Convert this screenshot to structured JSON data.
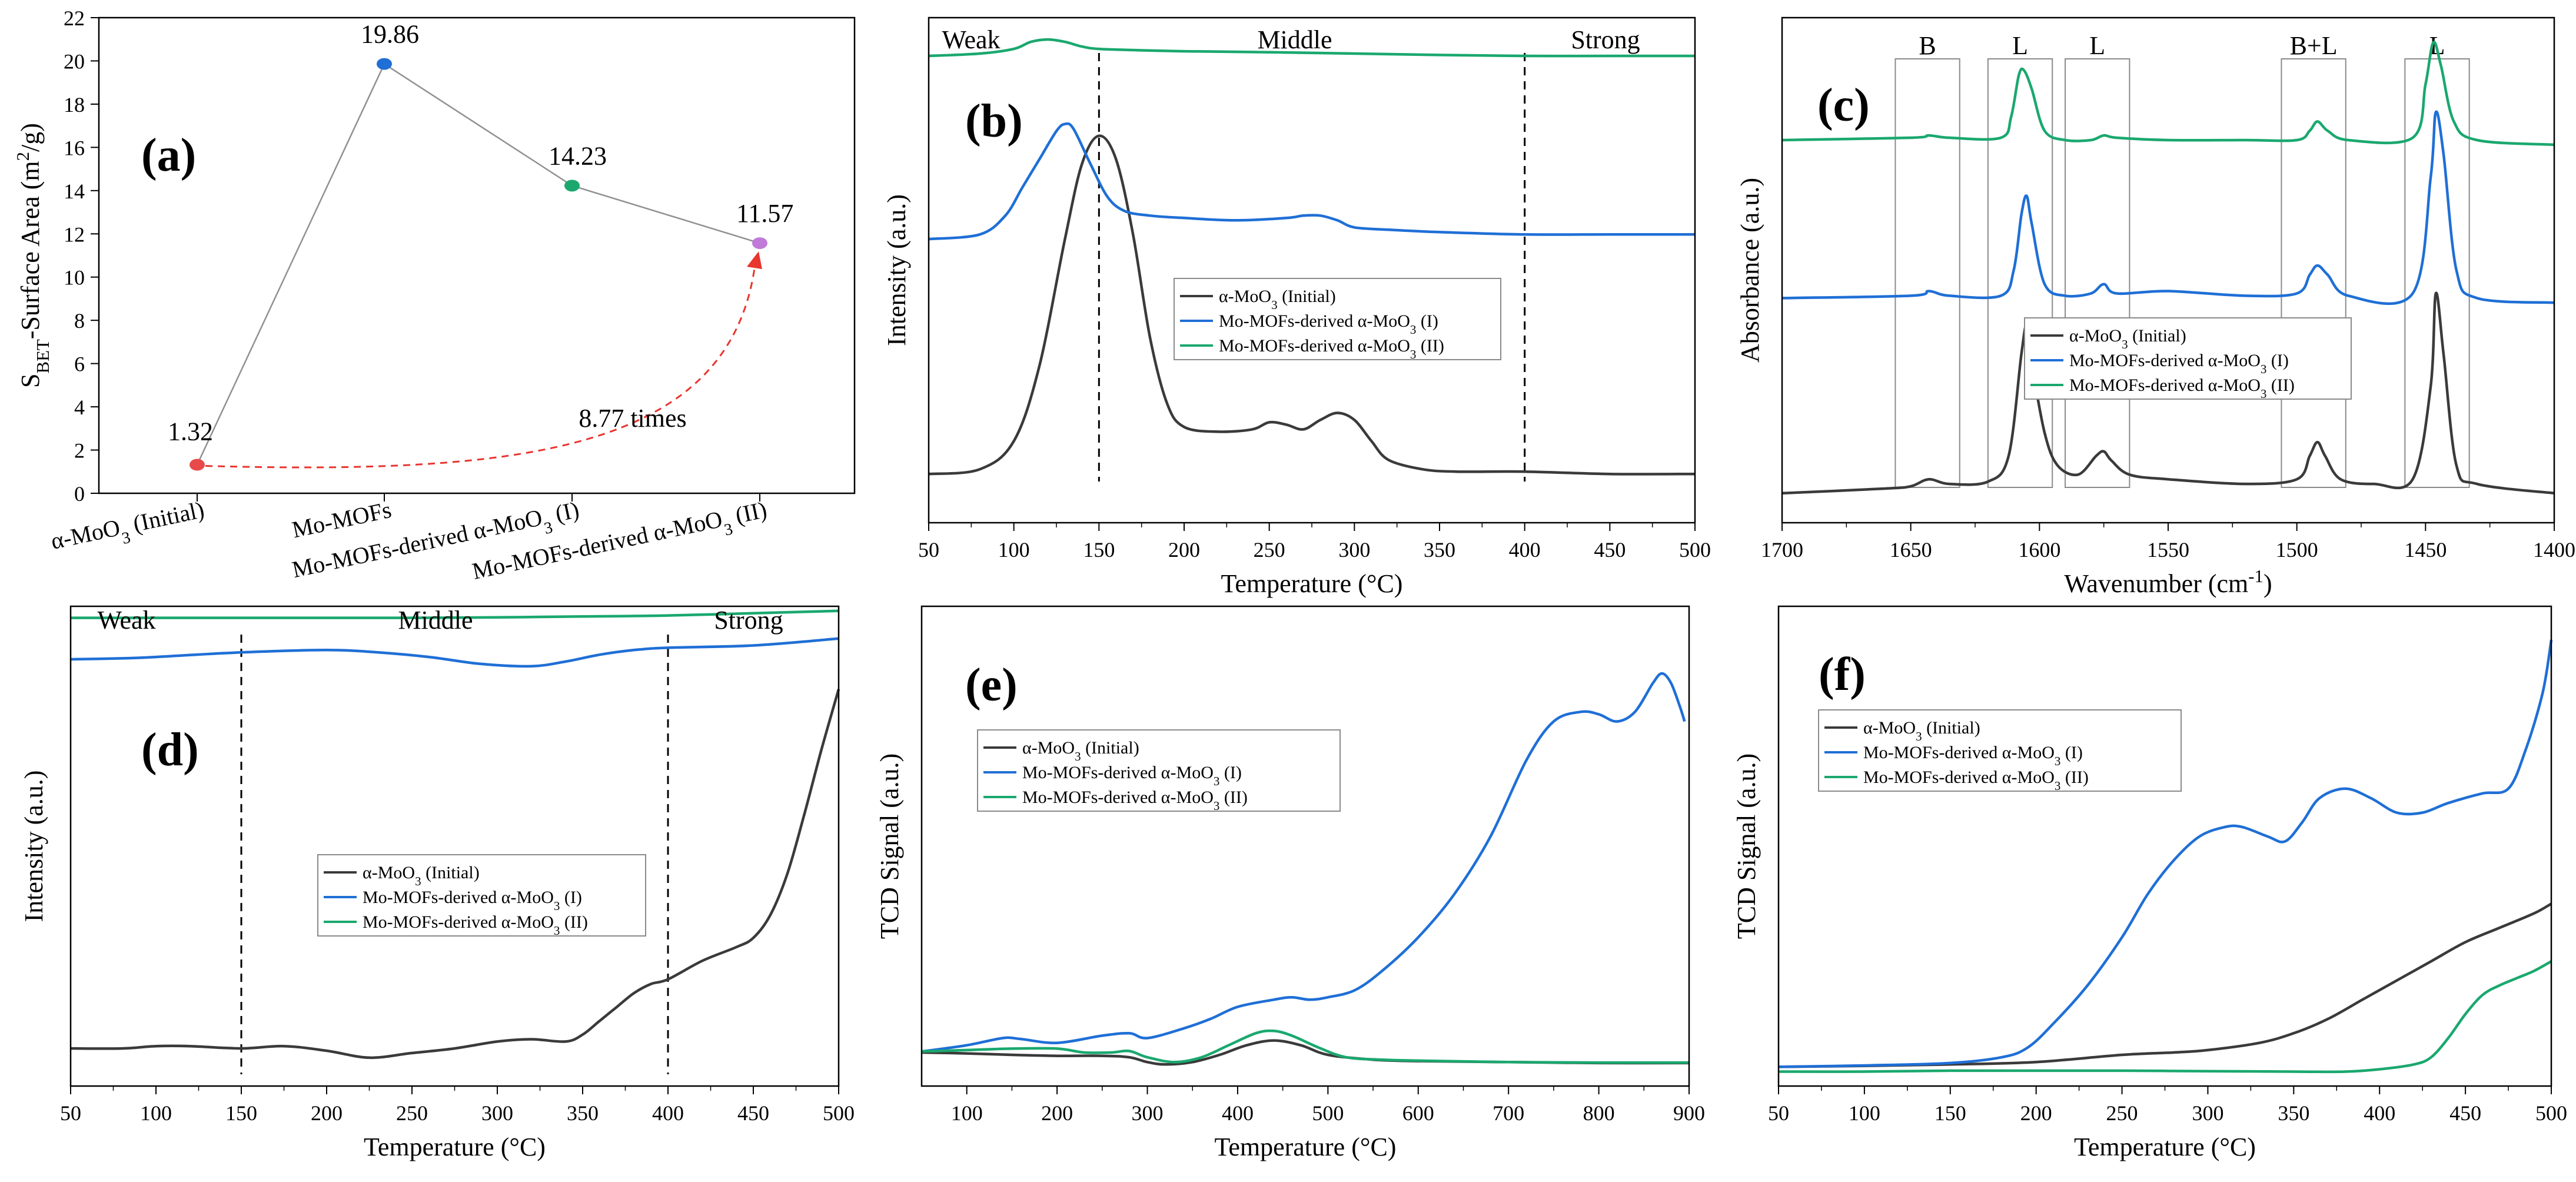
{
  "figure": "Six-panel figure: surface area and acid/reduction characterization of α-MoO3 samples",
  "colors": {
    "initial": "#3a3a3a",
    "mof1": "#1f6fd6",
    "mof2": "#1aa86e",
    "arrow": "#e8352e",
    "grey": "#909090"
  },
  "legend": [
    "α-MoO₃ (Initial)",
    "Mo-MOFs-derived α-MoO₃ (I)",
    "Mo-MOFs-derived α-MoO₃ (II)"
  ],
  "chart_data": [
    {
      "id": "a",
      "type": "scatter",
      "panel_label": "(a)",
      "ylabel": "S_BET-Surface Area (m²/g)",
      "ylim": [
        0,
        22
      ],
      "yticks": [
        "0",
        "2",
        "4",
        "6",
        "8",
        "10",
        "12",
        "14",
        "16",
        "18",
        "20",
        "22"
      ],
      "categories": [
        "α-MoO₃ (Initial)",
        "Mo-MOFs",
        "Mo-MOFs-derived α-MoO₃ (I)",
        "Mo-MOFs-derived α-MoO₃ (II)"
      ],
      "values": [
        1.32,
        19.86,
        14.23,
        11.57
      ],
      "point_labels": [
        "1.32",
        "19.86",
        "14.23",
        "11.57"
      ],
      "point_colors": [
        "#e84a4a",
        "#1f6fd6",
        "#1aa86e",
        "#c07ad8"
      ],
      "annotation": "8.77 times"
    },
    {
      "id": "b",
      "type": "line",
      "panel_label": "(b)",
      "xlabel": "Temperature (°C)",
      "ylabel": "Intensity (a.u.)",
      "xlim": [
        50,
        500
      ],
      "xticks": [
        "50",
        "100",
        "150",
        "200",
        "250",
        "300",
        "350",
        "400",
        "450",
        "500"
      ],
      "regions": [
        "Weak",
        "Middle",
        "Strong"
      ],
      "dividers": [
        150,
        400
      ],
      "series": [
        {
          "name": "α-MoO₃ (Initial)",
          "x": [
            50,
            80,
            100,
            115,
            130,
            140,
            150,
            160,
            170,
            180,
            190,
            200,
            220,
            240,
            250,
            260,
            270,
            280,
            290,
            300,
            310,
            320,
            340,
            360,
            400,
            450,
            500
          ],
          "y": [
            0.05,
            0.06,
            0.12,
            0.28,
            0.55,
            0.71,
            0.77,
            0.72,
            0.56,
            0.34,
            0.2,
            0.15,
            0.14,
            0.145,
            0.16,
            0.155,
            0.145,
            0.165,
            0.18,
            0.165,
            0.12,
            0.08,
            0.06,
            0.055,
            0.055,
            0.05,
            0.05
          ]
        },
        {
          "name": "Mo-MOFs-derived α-MoO₃ (I)",
          "x": [
            50,
            80,
            95,
            105,
            115,
            125,
            130,
            135,
            145,
            155,
            165,
            180,
            200,
            230,
            260,
            270,
            280,
            290,
            300,
            320,
            350,
            400,
            450,
            500
          ],
          "y": [
            0.55,
            0.56,
            0.6,
            0.66,
            0.72,
            0.78,
            0.795,
            0.785,
            0.71,
            0.64,
            0.61,
            0.6,
            0.595,
            0.59,
            0.595,
            0.6,
            0.6,
            0.59,
            0.575,
            0.57,
            0.565,
            0.56,
            0.56,
            0.56
          ]
        },
        {
          "name": "Mo-MOFs-derived α-MoO₃ (II)",
          "x": [
            50,
            80,
            100,
            110,
            120,
            130,
            140,
            150,
            175,
            200,
            250,
            300,
            350,
            400,
            450,
            500
          ],
          "y": [
            0.94,
            0.945,
            0.955,
            0.97,
            0.975,
            0.97,
            0.96,
            0.955,
            0.952,
            0.95,
            0.948,
            0.945,
            0.942,
            0.94,
            0.94,
            0.94
          ]
        }
      ]
    },
    {
      "id": "c",
      "type": "line",
      "panel_label": "(c)",
      "xlabel": "Wavenumber (cm⁻¹)",
      "ylabel": "Absorbance (a.u.)",
      "xlim": [
        1700,
        1400
      ],
      "xticks": [
        "1700",
        "1650",
        "1600",
        "1550",
        "1500",
        "1450",
        "1400"
      ],
      "bands": [
        "B",
        "L",
        "L",
        "B+L",
        "L"
      ],
      "series": [
        {
          "name": "α-MoO₃ (Initial)",
          "x": [
            1700,
            1660,
            1650,
            1643,
            1635,
            1620,
            1612,
            1607,
            1605,
            1603,
            1598,
            1593,
            1585,
            1578,
            1575,
            1572,
            1565,
            1550,
            1520,
            1500,
            1495,
            1492,
            1489,
            1483,
            1470,
            1455,
            1448,
            1446,
            1443,
            1438,
            1430,
            1400
          ],
          "y": [
            0.02,
            0.03,
            0.035,
            0.05,
            0.04,
            0.045,
            0.1,
            0.32,
            0.38,
            0.3,
            0.15,
            0.08,
            0.06,
            0.1,
            0.11,
            0.09,
            0.06,
            0.05,
            0.04,
            0.05,
            0.1,
            0.13,
            0.1,
            0.05,
            0.04,
            0.05,
            0.25,
            0.45,
            0.32,
            0.08,
            0.04,
            0.02
          ]
        },
        {
          "name": "Mo-MOFs-derived α-MoO₃ (I)",
          "x": [
            1700,
            1650,
            1643,
            1635,
            1615,
            1610,
            1607,
            1605,
            1603,
            1598,
            1590,
            1580,
            1575,
            1570,
            1550,
            1520,
            1500,
            1495,
            1492,
            1488,
            1480,
            1455,
            1448,
            1446,
            1443,
            1438,
            1430,
            1400
          ],
          "y": [
            0.44,
            0.445,
            0.455,
            0.445,
            0.445,
            0.5,
            0.62,
            0.66,
            0.6,
            0.47,
            0.445,
            0.45,
            0.47,
            0.45,
            0.455,
            0.445,
            0.45,
            0.49,
            0.51,
            0.49,
            0.445,
            0.45,
            0.7,
            0.84,
            0.75,
            0.5,
            0.44,
            0.43
          ]
        },
        {
          "name": "Mo-MOFs-derived α-MoO₃ (II)",
          "x": [
            1700,
            1650,
            1643,
            1635,
            1615,
            1611,
            1608,
            1606,
            1603,
            1598,
            1590,
            1580,
            1575,
            1570,
            1550,
            1520,
            1500,
            1495,
            1492,
            1488,
            1480,
            1455,
            1450,
            1447,
            1444,
            1439,
            1430,
            1400
          ],
          "y": [
            0.78,
            0.785,
            0.79,
            0.785,
            0.785,
            0.83,
            0.92,
            0.93,
            0.89,
            0.8,
            0.78,
            0.78,
            0.79,
            0.785,
            0.78,
            0.78,
            0.78,
            0.8,
            0.82,
            0.8,
            0.78,
            0.785,
            0.9,
            0.99,
            0.94,
            0.82,
            0.78,
            0.77
          ]
        }
      ]
    },
    {
      "id": "d",
      "type": "line",
      "panel_label": "(d)",
      "xlabel": "Temperature (°C)",
      "ylabel": "Intensity (a.u.)",
      "xlim": [
        50,
        500
      ],
      "xticks": [
        "50",
        "100",
        "150",
        "200",
        "250",
        "300",
        "350",
        "400",
        "450",
        "500"
      ],
      "regions": [
        "Weak",
        "Middle",
        "Strong"
      ],
      "dividers": [
        150,
        400
      ],
      "series": [
        {
          "name": "α-MoO₃ (Initial)",
          "x": [
            50,
            80,
            100,
            120,
            150,
            175,
            200,
            225,
            250,
            275,
            300,
            320,
            340,
            350,
            360,
            370,
            380,
            390,
            400,
            420,
            440,
            450,
            460,
            470,
            480,
            490,
            500
          ],
          "y": [
            0.04,
            0.04,
            0.045,
            0.045,
            0.04,
            0.045,
            0.035,
            0.02,
            0.03,
            0.04,
            0.055,
            0.06,
            0.055,
            0.07,
            0.1,
            0.13,
            0.16,
            0.18,
            0.19,
            0.23,
            0.26,
            0.28,
            0.33,
            0.42,
            0.55,
            0.69,
            0.82
          ]
        },
        {
          "name": "Mo-MOFs-derived α-MoO₃ (I)",
          "x": [
            50,
            80,
            100,
            150,
            200,
            230,
            260,
            290,
            320,
            340,
            360,
            380,
            400,
            450,
            500
          ],
          "y": [
            0.885,
            0.887,
            0.89,
            0.9,
            0.905,
            0.9,
            0.89,
            0.875,
            0.87,
            0.88,
            0.895,
            0.905,
            0.91,
            0.915,
            0.93
          ]
        },
        {
          "name": "Mo-MOFs-derived α-MoO₃ (II)",
          "x": [
            50,
            100,
            150,
            200,
            250,
            300,
            350,
            400,
            450,
            500
          ],
          "y": [
            0.975,
            0.975,
            0.975,
            0.975,
            0.975,
            0.976,
            0.978,
            0.98,
            0.985,
            0.99
          ]
        }
      ]
    },
    {
      "id": "e",
      "type": "line",
      "panel_label": "(e)",
      "xlabel": "Temperature (°C)",
      "ylabel": "TCD Signal (a.u.)",
      "xlim": [
        50,
        900
      ],
      "xticks": [
        "100",
        "200",
        "300",
        "400",
        "500",
        "600",
        "700",
        "800",
        "900"
      ],
      "series": [
        {
          "name": "α-MoO₃ (Initial)",
          "x": [
            50,
            100,
            150,
            200,
            250,
            280,
            300,
            320,
            350,
            380,
            410,
            440,
            470,
            500,
            550,
            600,
            700,
            800,
            900
          ],
          "y": [
            0.07,
            0.068,
            0.065,
            0.063,
            0.063,
            0.06,
            0.05,
            0.045,
            0.05,
            0.065,
            0.085,
            0.095,
            0.085,
            0.065,
            0.055,
            0.052,
            0.05,
            0.048,
            0.048
          ]
        },
        {
          "name": "Mo-MOFs-derived α-MoO₃ (I)",
          "x": [
            50,
            100,
            140,
            160,
            200,
            250,
            280,
            300,
            340,
            370,
            400,
            440,
            460,
            480,
            500,
            530,
            560,
            600,
            640,
            680,
            720,
            750,
            780,
            800,
            820,
            840,
            860,
            870,
            880,
            890,
            895
          ],
          "y": [
            0.072,
            0.085,
            0.1,
            0.098,
            0.09,
            0.105,
            0.11,
            0.1,
            0.12,
            0.14,
            0.165,
            0.18,
            0.185,
            0.18,
            0.185,
            0.2,
            0.24,
            0.31,
            0.4,
            0.52,
            0.68,
            0.76,
            0.78,
            0.775,
            0.76,
            0.78,
            0.84,
            0.86,
            0.84,
            0.79,
            0.76
          ]
        },
        {
          "name": "Mo-MOFs-derived α-MoO₃ (II)",
          "x": [
            50,
            100,
            150,
            200,
            230,
            260,
            280,
            300,
            330,
            360,
            390,
            420,
            440,
            460,
            490,
            520,
            560,
            600,
            700,
            800,
            900
          ],
          "y": [
            0.072,
            0.075,
            0.078,
            0.078,
            0.07,
            0.07,
            0.073,
            0.06,
            0.05,
            0.06,
            0.085,
            0.11,
            0.115,
            0.105,
            0.08,
            0.06,
            0.055,
            0.053,
            0.05,
            0.049,
            0.049
          ]
        }
      ]
    },
    {
      "id": "f",
      "type": "line",
      "panel_label": "(f)",
      "xlabel": "Temperature (°C)",
      "ylabel": "TCD Signal (a.u.)",
      "xlim": [
        50,
        500
      ],
      "xticks": [
        "50",
        "100",
        "150",
        "200",
        "250",
        "300",
        "350",
        "400",
        "450",
        "500"
      ],
      "series": [
        {
          "name": "α-MoO₃ (Initial)",
          "x": [
            50,
            100,
            150,
            200,
            250,
            280,
            300,
            330,
            350,
            370,
            390,
            410,
            430,
            450,
            470,
            490,
            500
          ],
          "y": [
            0.04,
            0.042,
            0.045,
            0.05,
            0.065,
            0.07,
            0.075,
            0.09,
            0.11,
            0.14,
            0.18,
            0.22,
            0.26,
            0.3,
            0.33,
            0.36,
            0.38
          ]
        },
        {
          "name": "Mo-MOFs-derived α-MoO₃ (I)",
          "x": [
            50,
            100,
            150,
            180,
            195,
            210,
            230,
            250,
            265,
            280,
            295,
            310,
            320,
            335,
            345,
            355,
            365,
            380,
            395,
            410,
            425,
            440,
            460,
            475,
            485,
            495,
            500
          ],
          "y": [
            0.04,
            0.043,
            0.048,
            0.06,
            0.08,
            0.13,
            0.21,
            0.31,
            0.4,
            0.47,
            0.52,
            0.54,
            0.54,
            0.52,
            0.51,
            0.55,
            0.6,
            0.62,
            0.6,
            0.57,
            0.57,
            0.59,
            0.61,
            0.62,
            0.7,
            0.82,
            0.93
          ]
        },
        {
          "name": "Mo-MOFs-derived α-MoO₃ (II)",
          "x": [
            50,
            100,
            150,
            200,
            250,
            300,
            350,
            380,
            400,
            420,
            430,
            440,
            450,
            460,
            470,
            480,
            490,
            500
          ],
          "y": [
            0.03,
            0.03,
            0.032,
            0.032,
            0.032,
            0.031,
            0.03,
            0.03,
            0.035,
            0.045,
            0.06,
            0.1,
            0.15,
            0.19,
            0.21,
            0.225,
            0.24,
            0.26
          ]
        }
      ]
    }
  ]
}
